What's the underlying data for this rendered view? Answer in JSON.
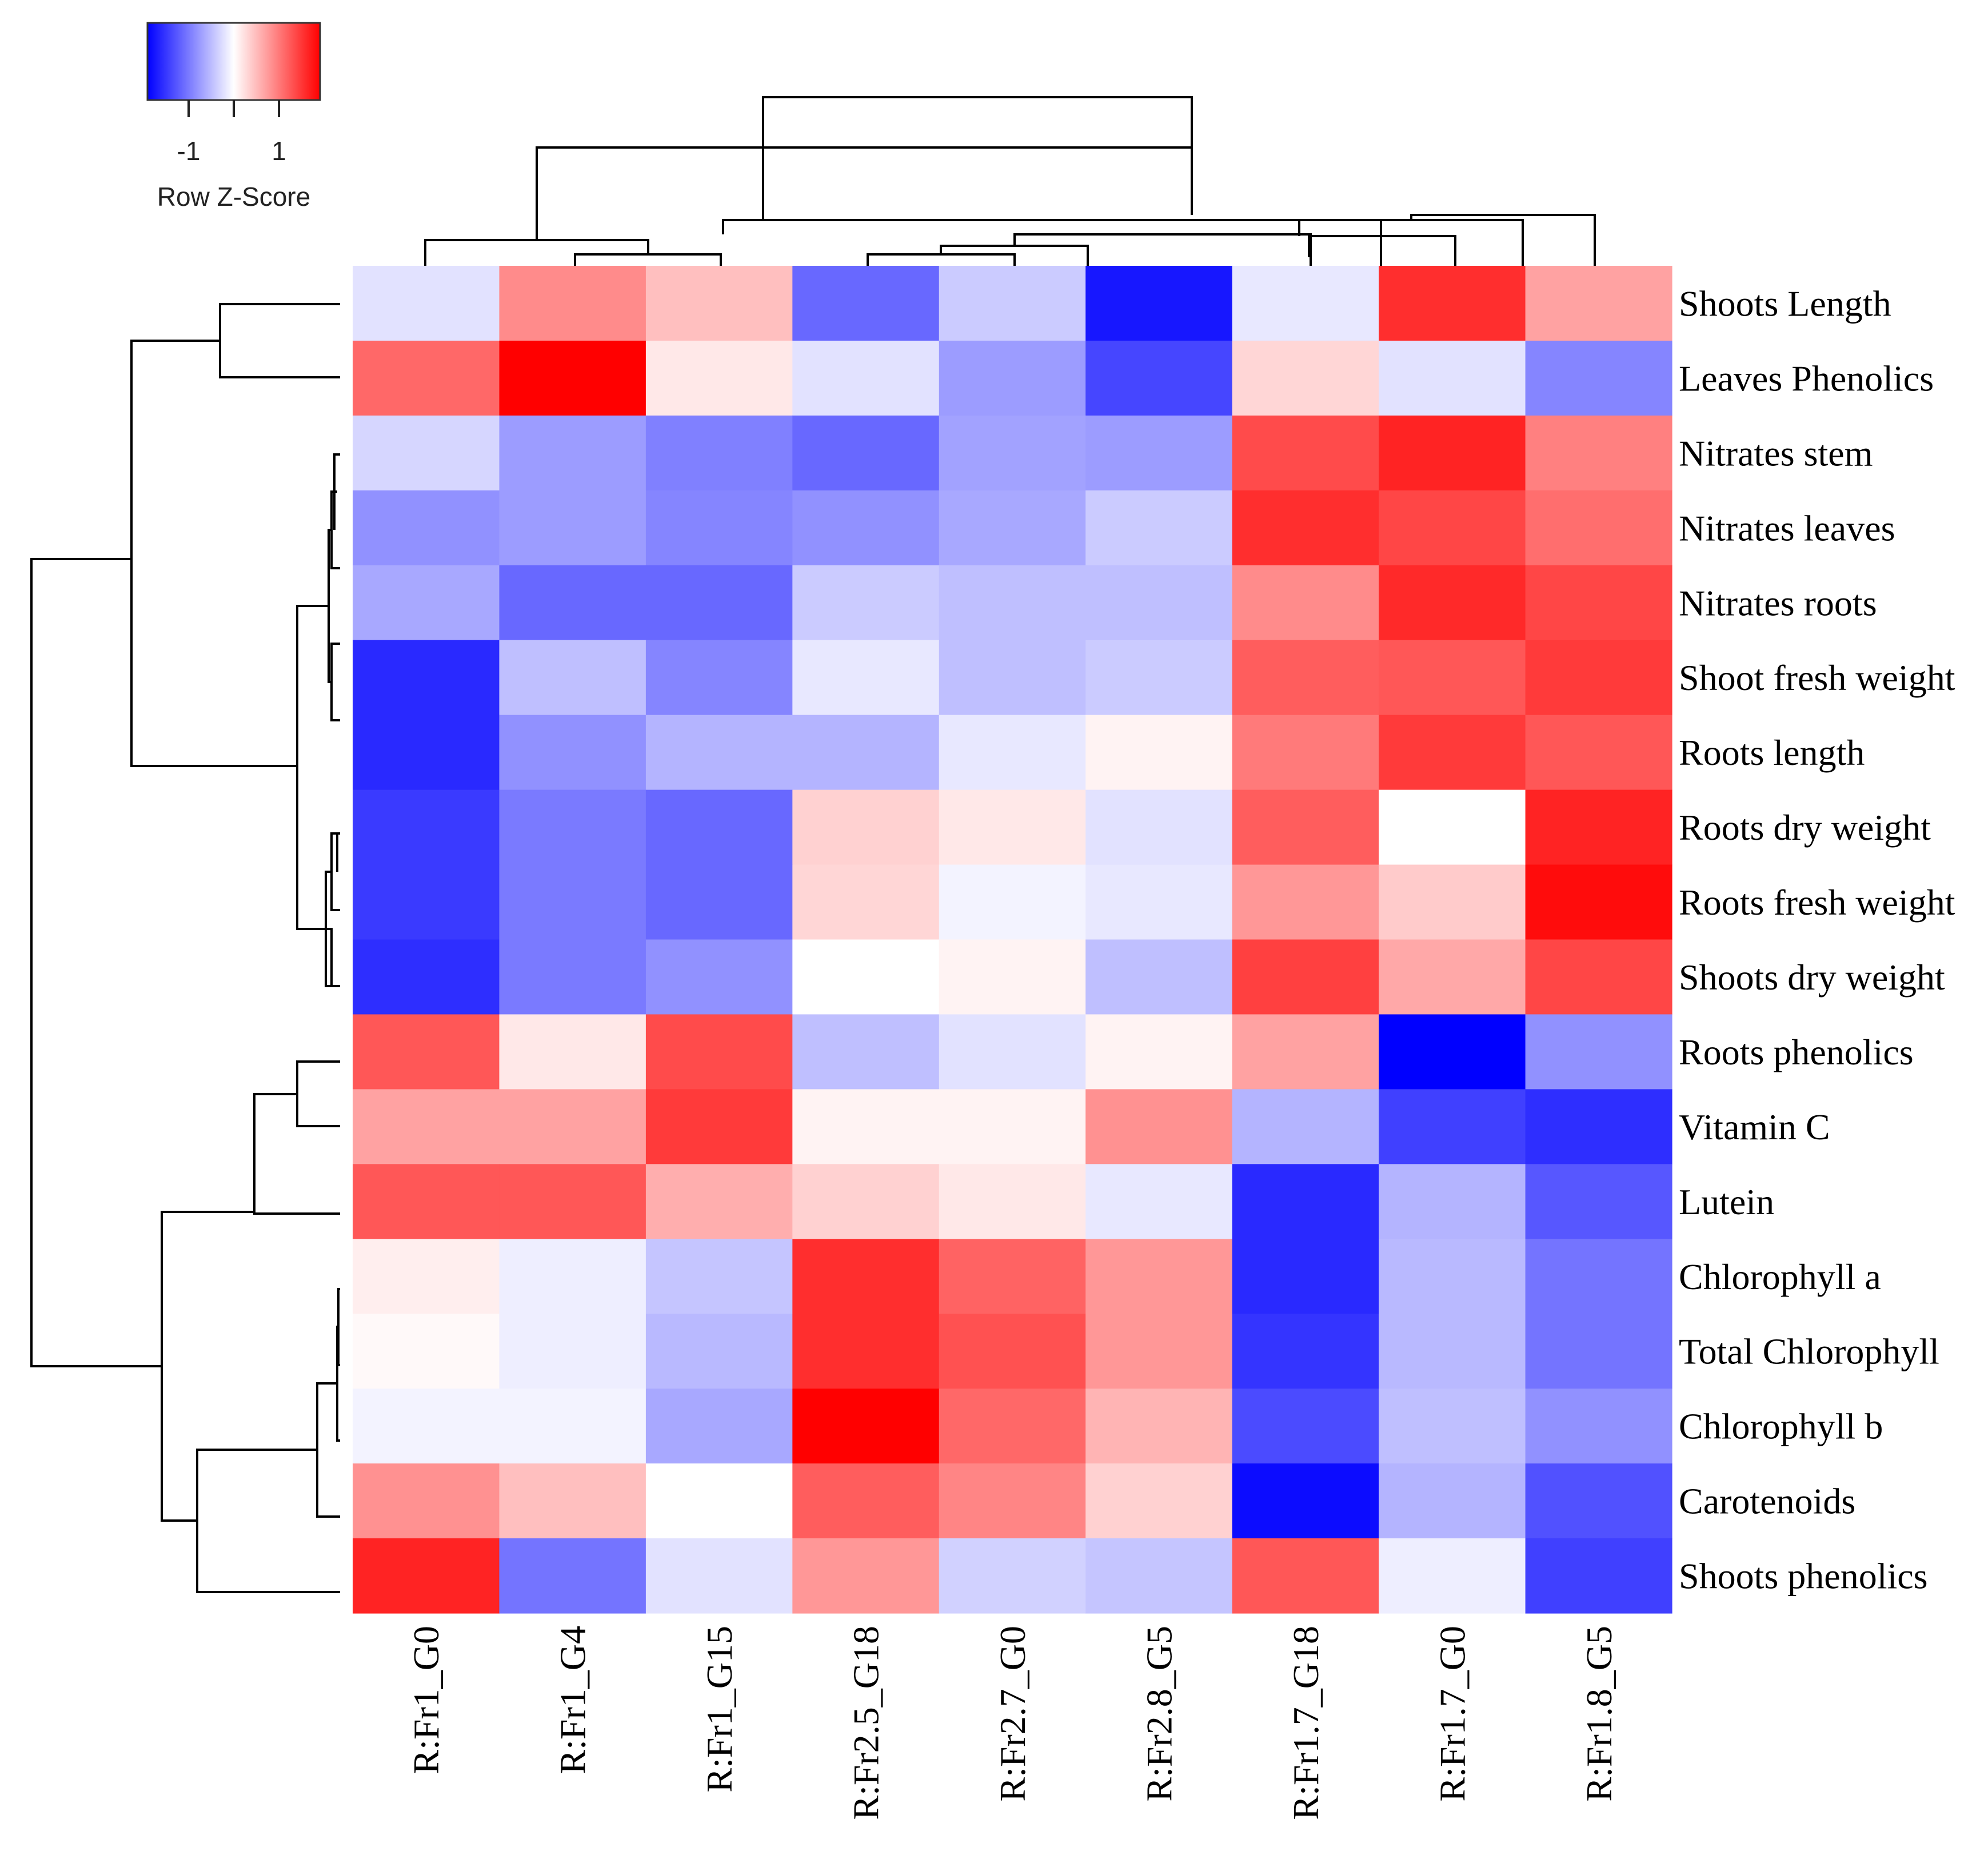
{
  "chart_data": {
    "type": "heatmap",
    "legend": {
      "title": "Row Z-Score",
      "ticks": [
        "-1",
        "1"
      ],
      "tick_values": [
        -1,
        1
      ],
      "range": [
        -2.2,
        2.2
      ],
      "colors": {
        "low": "#0000ff",
        "mid": "#ffffff",
        "high": "#ff0000"
      }
    },
    "columns": [
      "R:Fr1_G0",
      "R:Fr1_G4",
      "R:Fr1_G15",
      "R:Fr2.5_G18",
      "R:Fr2.7_G0",
      "R:Fr2.8_G5",
      "R:Fr1.7_G18",
      "R:Fr1.7_G0",
      "R:Fr1.8_G5"
    ],
    "rows": [
      "Shoots Length",
      "Leaves Phenolics",
      "Nitrates stem",
      "Nitrates leaves",
      "Nitrates roots",
      "Shoot fresh weight",
      "Roots length",
      "Roots dry weight",
      "Roots fresh weight",
      "Shoots dry weight",
      "Roots phenolics",
      "Vitamin C",
      "Lutein",
      "Chlorophyll a",
      "Total Chlorophyll",
      "Chlorophyll b",
      "Carotenoids",
      "Shoots phenolics"
    ],
    "values": [
      [
        -0.25,
        1.0,
        0.55,
        -1.3,
        -0.45,
        -2.0,
        -0.2,
        1.8,
        0.8
      ],
      [
        1.3,
        2.2,
        0.2,
        -0.25,
        -0.85,
        -1.6,
        0.35,
        -0.25,
        -1.05
      ],
      [
        -0.35,
        -0.85,
        -1.1,
        -1.3,
        -0.8,
        -0.85,
        1.55,
        1.9,
        1.1
      ],
      [
        -0.95,
        -0.85,
        -1.05,
        -0.95,
        -0.75,
        -0.45,
        1.8,
        1.6,
        1.25
      ],
      [
        -0.75,
        -1.3,
        -1.3,
        -0.45,
        -0.55,
        -0.55,
        1.0,
        1.85,
        1.6
      ],
      [
        -1.85,
        -0.55,
        -1.05,
        -0.2,
        -0.55,
        -0.45,
        1.4,
        1.45,
        1.7
      ],
      [
        -1.85,
        -0.95,
        -0.65,
        -0.65,
        -0.2,
        0.1,
        1.15,
        1.7,
        1.45
      ],
      [
        -1.7,
        -1.15,
        -1.3,
        0.4,
        0.2,
        -0.25,
        1.4,
        0.0,
        1.9
      ],
      [
        -1.7,
        -1.15,
        -1.3,
        0.35,
        -0.1,
        -0.2,
        0.9,
        0.45,
        2.1
      ],
      [
        -1.8,
        -1.15,
        -0.95,
        0.0,
        0.1,
        -0.55,
        1.65,
        0.75,
        1.6
      ],
      [
        1.45,
        0.2,
        1.55,
        -0.55,
        -0.25,
        0.1,
        0.8,
        -2.2,
        -0.95
      ],
      [
        0.8,
        0.8,
        1.7,
        0.1,
        0.1,
        0.95,
        -0.65,
        -1.65,
        -1.8
      ],
      [
        1.45,
        1.45,
        0.7,
        0.4,
        0.2,
        -0.2,
        -1.85,
        -0.65,
        -1.45
      ],
      [
        0.15,
        -0.15,
        -0.5,
        1.8,
        1.35,
        0.9,
        -1.85,
        -0.6,
        -1.2
      ],
      [
        0.05,
        -0.15,
        -0.6,
        1.8,
        1.5,
        0.9,
        -1.75,
        -0.6,
        -1.2
      ],
      [
        -0.1,
        -0.1,
        -0.75,
        2.2,
        1.3,
        0.65,
        -1.55,
        -0.55,
        -0.95
      ],
      [
        0.95,
        0.55,
        0.0,
        1.4,
        1.05,
        0.4,
        -2.1,
        -0.65,
        -1.5
      ],
      [
        1.9,
        -1.2,
        -0.25,
        0.9,
        -0.4,
        -0.5,
        1.45,
        -0.15,
        -1.65
      ]
    ]
  }
}
